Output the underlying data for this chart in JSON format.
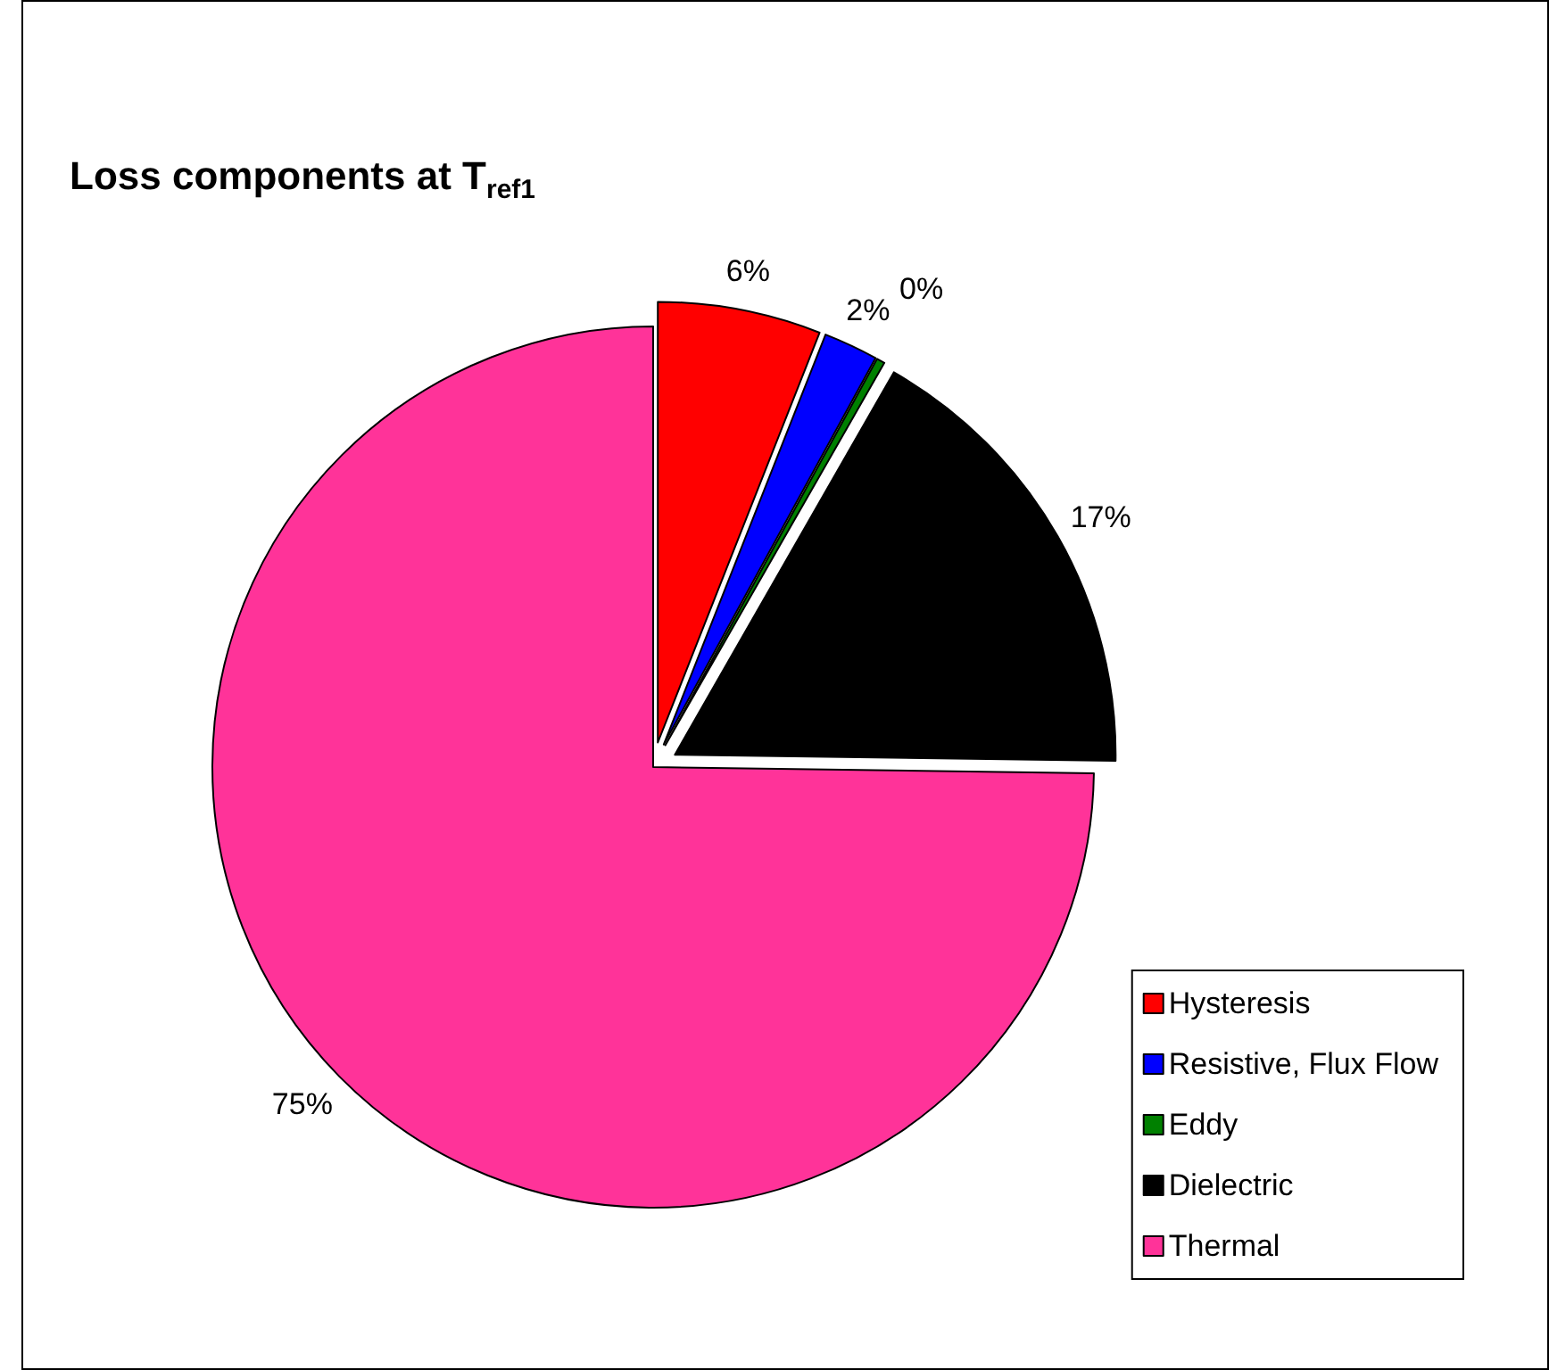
{
  "chart_data": {
    "type": "pie",
    "title": "Loss components at T$_{ref1}$",
    "categories": [
      "Hysteresis",
      "Resistive, Flux Flow",
      "Eddy",
      "Dielectric",
      "Thermal"
    ],
    "values": [
      6,
      2,
      0.3,
      17,
      75
    ],
    "colors": [
      "#ff0000",
      "#0000ff",
      "#008000",
      "#000000",
      "#ff3399"
    ],
    "value_labels": [
      "6%",
      "2%",
      "0%",
      "17%",
      "75%"
    ],
    "legend": "bottom right"
  }
}
